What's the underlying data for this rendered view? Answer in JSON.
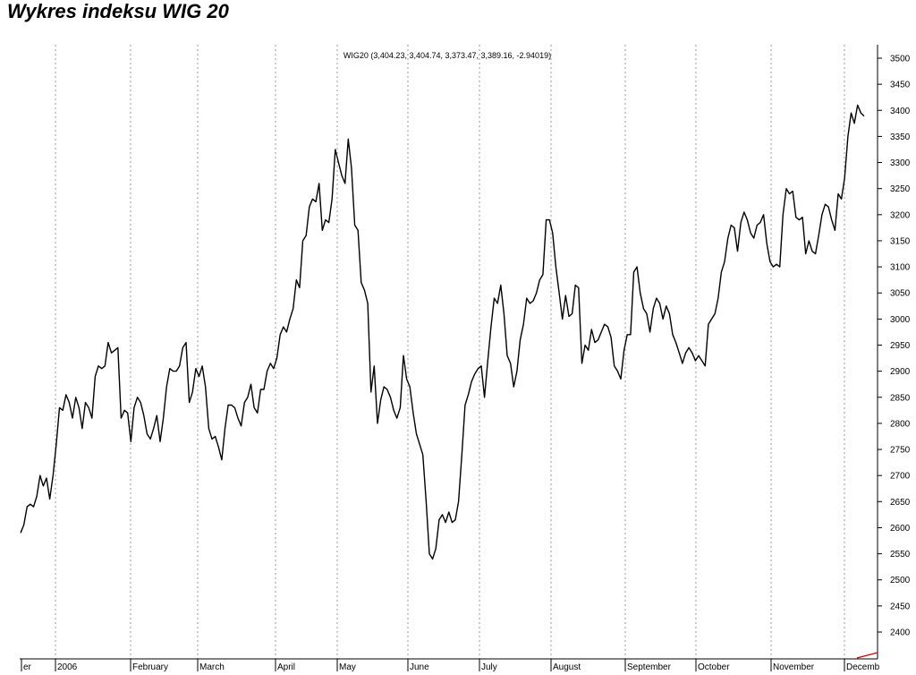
{
  "page": {
    "title": "Wykres indeksu WIG 20"
  },
  "chart_data": {
    "type": "line",
    "title": "",
    "legend": "WIG20 (3,404.23, 3,404.74, 3,373.47, 3,389.16, -2.94019)",
    "xlabel": "",
    "ylabel": "",
    "ylim": [
      2360,
      3520
    ],
    "yticks": [
      2400,
      2450,
      2500,
      2550,
      2600,
      2650,
      2700,
      2750,
      2800,
      2850,
      2900,
      2950,
      3000,
      3050,
      3100,
      3150,
      3200,
      3250,
      3300,
      3350,
      3400,
      3450,
      3500
    ],
    "ytick_labels": [
      "2400",
      "2450",
      "2500",
      "2550",
      "2600",
      "2650",
      "2700",
      "2750",
      "2800",
      "2850",
      "2900",
      "2950",
      "3000",
      "3050",
      "3100",
      "3150",
      "3200",
      "3250",
      "3300",
      "3350",
      "3400",
      "3450",
      "3500"
    ],
    "x_axis_labels": [
      "er",
      "2006",
      "February",
      "March",
      "April",
      "May",
      "June",
      "July",
      "August",
      "September",
      "October",
      "November",
      "Decemb"
    ],
    "grid": "vertical dotted at month boundaries",
    "series": [
      {
        "name": "WIG20",
        "color": "#000000",
        "values": [
          2590,
          2605,
          2640,
          2645,
          2640,
          2660,
          2700,
          2680,
          2695,
          2655,
          2700,
          2760,
          2830,
          2825,
          2855,
          2840,
          2810,
          2850,
          2830,
          2790,
          2840,
          2830,
          2810,
          2890,
          2910,
          2905,
          2910,
          2955,
          2935,
          2940,
          2945,
          2810,
          2825,
          2820,
          2765,
          2830,
          2850,
          2840,
          2815,
          2780,
          2770,
          2790,
          2815,
          2765,
          2810,
          2870,
          2905,
          2900,
          2900,
          2910,
          2945,
          2955,
          2840,
          2860,
          2905,
          2890,
          2910,
          2870,
          2790,
          2770,
          2775,
          2755,
          2730,
          2790,
          2835,
          2835,
          2830,
          2810,
          2795,
          2840,
          2850,
          2875,
          2830,
          2820,
          2865,
          2865,
          2900,
          2915,
          2905,
          2925,
          2970,
          2985,
          2975,
          3000,
          3020,
          3075,
          3060,
          3150,
          3160,
          3215,
          3230,
          3225,
          3260,
          3170,
          3190,
          3185,
          3230,
          3325,
          3300,
          3275,
          3260,
          3345,
          3290,
          3180,
          3170,
          3070,
          3055,
          3030,
          2860,
          2910,
          2800,
          2845,
          2870,
          2865,
          2850,
          2825,
          2810,
          2830,
          2930,
          2885,
          2870,
          2820,
          2780,
          2760,
          2740,
          2650,
          2550,
          2540,
          2560,
          2615,
          2625,
          2610,
          2630,
          2610,
          2615,
          2650,
          2740,
          2835,
          2855,
          2880,
          2895,
          2905,
          2910,
          2850,
          2920,
          2985,
          3040,
          3030,
          3065,
          3010,
          2930,
          2915,
          2870,
          2900,
          2960,
          2990,
          3040,
          3030,
          3035,
          3050,
          3075,
          3085,
          3190,
          3190,
          3165,
          3100,
          3050,
          3000,
          3045,
          3005,
          3010,
          3065,
          3060,
          2915,
          2950,
          2940,
          2980,
          2955,
          2960,
          2975,
          2990,
          2985,
          2965,
          2910,
          2900,
          2885,
          2940,
          2970,
          2970,
          3090,
          3100,
          3050,
          3020,
          3010,
          2975,
          3020,
          3040,
          3030,
          3000,
          3025,
          3010,
          2970,
          2955,
          2935,
          2915,
          2935,
          2945,
          2935,
          2920,
          2930,
          2920,
          2910,
          2990,
          3000,
          3010,
          3040,
          3090,
          3110,
          3155,
          3180,
          3175,
          3130,
          3185,
          3205,
          3190,
          3165,
          3155,
          3180,
          3185,
          3200,
          3145,
          3110,
          3100,
          3105,
          3100,
          3200,
          3250,
          3240,
          3245,
          3195,
          3190,
          3195,
          3125,
          3150,
          3130,
          3125,
          3160,
          3200,
          3220,
          3215,
          3190,
          3170,
          3240,
          3230,
          3270,
          3350,
          3395,
          3375,
          3410,
          3395,
          3389
        ]
      }
    ]
  }
}
